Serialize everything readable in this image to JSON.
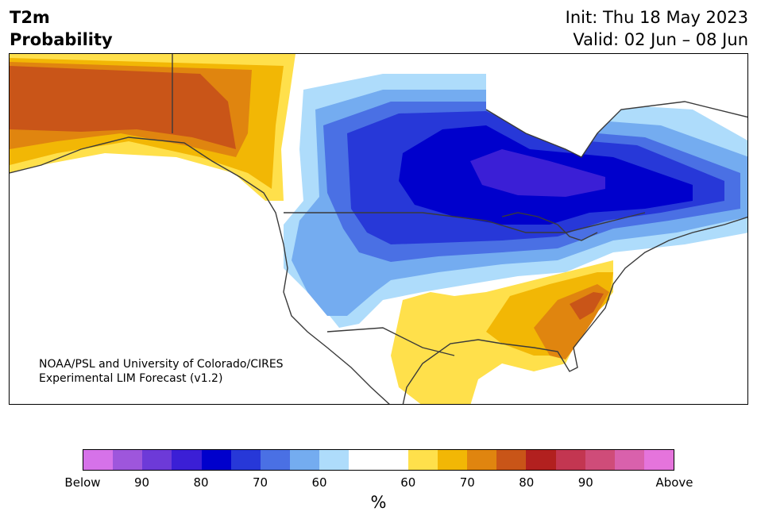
{
  "header": {
    "title_line1": "T2m",
    "title_line2": "Probability",
    "init": "Init: Thu 18 May 2023",
    "valid": "Valid: 02 Jun – 08 Jun"
  },
  "credit": {
    "line1": "NOAA/PSL and University of Colorado/CIRES",
    "line2": "Experimental LIM Forecast (v1.2)"
  },
  "colorbar": {
    "unit": "%",
    "colors": [
      "#d672e9",
      "#9e56dc",
      "#6d3ad8",
      "#3b1fd6",
      "#0000cc",
      "#2738d8",
      "#4a70e4",
      "#74acf0",
      "#aedcfb",
      "#ffffff",
      "#ffffff",
      "#ffe04b",
      "#f2b705",
      "#e0850f",
      "#c95518",
      "#b2201f",
      "#c33651",
      "#cf4c79",
      "#d961ac",
      "#e574dc"
    ],
    "tick_labels": [
      "Below",
      "90",
      "80",
      "70",
      "60",
      "60",
      "70",
      "80",
      "90",
      "Above"
    ]
  },
  "legend_colors": {
    "below_strong": "#0000cc",
    "below_light": "#aedcfb",
    "above_light": "#ffe04b",
    "above_strong": "#c95518"
  }
}
